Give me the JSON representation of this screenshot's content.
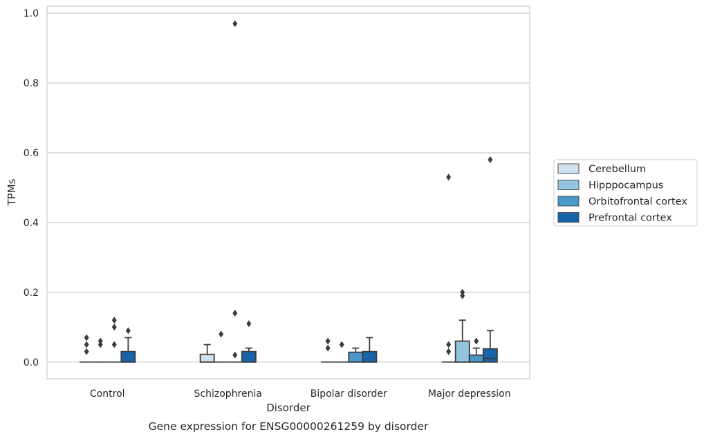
{
  "chart_data": {
    "type": "box",
    "title": "Gene expression for ENSG00000261259 by disorder",
    "xlabel": "Disorder",
    "ylabel": "TPMs",
    "ylim": [
      -0.048,
      1.02
    ],
    "yticks": [
      "0.0",
      "0.2",
      "0.4",
      "0.6",
      "0.8",
      "1.0"
    ],
    "ytick_values": [
      0,
      0.2,
      0.4,
      0.6,
      0.8,
      1.0
    ],
    "grid": "horizontal",
    "legend_position": "right",
    "categories": [
      "Control",
      "Schizophrenia",
      "Bipolar disorder",
      "Major depression"
    ],
    "series": [
      {
        "name": "Cerebellum",
        "color": "#d0e1f2",
        "boxes": [
          {
            "q1": 0,
            "median": 0,
            "q3": 0,
            "whisker_low": 0,
            "whisker_high": 0,
            "outliers": [
              0.03,
              0.05,
              0.07
            ]
          },
          {
            "q1": 0,
            "median": 0,
            "q3": 0.022,
            "whisker_low": 0,
            "whisker_high": 0.05,
            "outliers": []
          },
          {
            "q1": 0,
            "median": 0,
            "q3": 0,
            "whisker_low": 0,
            "whisker_high": 0,
            "outliers": [
              0.04,
              0.06
            ]
          },
          {
            "q1": 0,
            "median": 0,
            "q3": 0,
            "whisker_low": 0,
            "whisker_high": 0,
            "outliers": [
              0.03,
              0.05,
              0.53
            ]
          }
        ]
      },
      {
        "name": "Hipppocampus",
        "color": "#94c4df",
        "boxes": [
          {
            "q1": 0,
            "median": 0,
            "q3": 0,
            "whisker_low": 0,
            "whisker_high": 0,
            "outliers": [
              0.05,
              0.06
            ]
          },
          {
            "q1": 0,
            "median": 0,
            "q3": 0,
            "whisker_low": 0,
            "whisker_high": 0,
            "outliers": [
              0.08
            ]
          },
          {
            "q1": 0,
            "median": 0,
            "q3": 0,
            "whisker_low": 0,
            "whisker_high": 0,
            "outliers": [
              0.05
            ]
          },
          {
            "q1": 0,
            "median": 0,
            "q3": 0.06,
            "whisker_low": 0,
            "whisker_high": 0.12,
            "outliers": [
              0.19,
              0.2
            ]
          }
        ]
      },
      {
        "name": "Orbitofrontal cortex",
        "color": "#4a98c9",
        "boxes": [
          {
            "q1": 0,
            "median": 0,
            "q3": 0,
            "whisker_low": 0,
            "whisker_high": 0,
            "outliers": [
              0.05,
              0.1,
              0.12
            ]
          },
          {
            "q1": 0,
            "median": 0,
            "q3": 0,
            "whisker_low": 0,
            "whisker_high": 0,
            "outliers": [
              0.02,
              0.14,
              0.97
            ]
          },
          {
            "q1": 0,
            "median": 0,
            "q3": 0.028,
            "whisker_low": 0,
            "whisker_high": 0.04,
            "outliers": []
          },
          {
            "q1": 0,
            "median": 0,
            "q3": 0.02,
            "whisker_low": 0,
            "whisker_high": 0.04,
            "outliers": [
              0.06
            ]
          }
        ]
      },
      {
        "name": "Prefrontal cortex",
        "color": "#1764ab",
        "boxes": [
          {
            "q1": 0,
            "median": 0,
            "q3": 0.03,
            "whisker_low": 0,
            "whisker_high": 0.07,
            "outliers": [
              0.09
            ]
          },
          {
            "q1": 0,
            "median": 0,
            "q3": 0.03,
            "whisker_low": 0,
            "whisker_high": 0.04,
            "outliers": [
              0.11
            ]
          },
          {
            "q1": 0,
            "median": 0,
            "q3": 0.03,
            "whisker_low": 0,
            "whisker_high": 0.07,
            "outliers": []
          },
          {
            "q1": 0,
            "median": 0.01,
            "q3": 0.038,
            "whisker_low": 0,
            "whisker_high": 0.09,
            "outliers": [
              0.58
            ]
          }
        ]
      }
    ],
    "colors": {
      "grid": "#cccccc",
      "frame": "#cccccc",
      "box_edge": "#3d3d3d",
      "legend_edge": "#cccccc"
    }
  }
}
